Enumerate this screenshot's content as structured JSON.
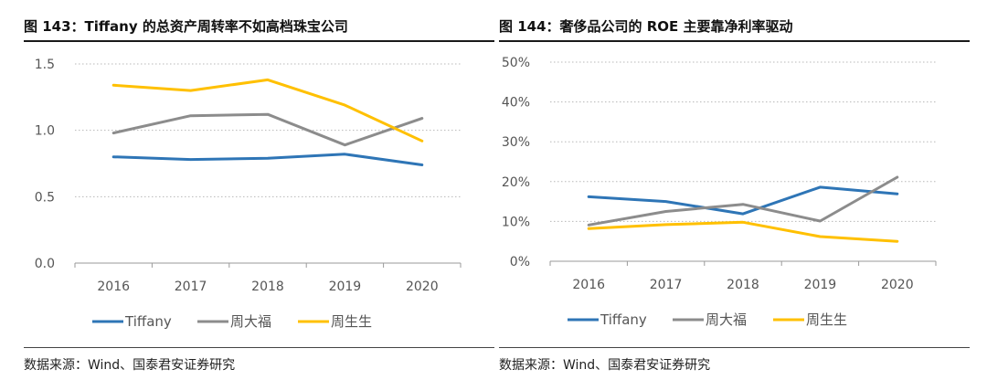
{
  "panels": [
    {
      "title": "图 143：Tiffany 的总资产周转率不如高档珠宝公司",
      "source": "数据来源：Wind、国泰君安证券研究"
    },
    {
      "title": "图 144：奢侈品公司的 ROE 主要靠净利率驱动",
      "source": "数据来源：Wind、国泰君安证券研究"
    }
  ],
  "chart_data": [
    {
      "type": "line",
      "title": "",
      "xlabel": "",
      "ylabel": "",
      "categories": [
        "2016",
        "2017",
        "2018",
        "2019",
        "2020"
      ],
      "ylim": [
        0,
        1.5
      ],
      "yticks": [
        "0.0",
        "0.5",
        "1.0",
        "1.5"
      ],
      "grid": "horizontal dotted",
      "legend": "bottom",
      "series": [
        {
          "name": "Tiffany",
          "color": "#2E75B6",
          "values": [
            0.8,
            0.78,
            0.79,
            0.82,
            0.74
          ]
        },
        {
          "name": "周大福",
          "color": "#8C8C8C",
          "values": [
            0.98,
            1.11,
            1.12,
            0.89,
            1.09
          ]
        },
        {
          "name": "周生生",
          "color": "#FFC000",
          "values": [
            1.34,
            1.3,
            1.38,
            1.19,
            0.92
          ]
        }
      ]
    },
    {
      "type": "line",
      "title": "",
      "xlabel": "",
      "ylabel": "",
      "categories": [
        "2016",
        "2017",
        "2018",
        "2019",
        "2020"
      ],
      "ylim": [
        0,
        50
      ],
      "yticks": [
        "0%",
        "10%",
        "20%",
        "30%",
        "40%",
        "50%"
      ],
      "grid": "horizontal dotted",
      "legend": "bottom",
      "series": [
        {
          "name": "Tiffany",
          "color": "#2E75B6",
          "values": [
            16.2,
            15.0,
            11.9,
            18.6,
            16.9
          ]
        },
        {
          "name": "周大福",
          "color": "#8C8C8C",
          "values": [
            9.1,
            12.5,
            14.3,
            10.1,
            21.1
          ]
        },
        {
          "name": "周生生",
          "color": "#FFC000",
          "values": [
            8.2,
            9.2,
            9.8,
            6.2,
            5.0
          ]
        }
      ]
    }
  ]
}
